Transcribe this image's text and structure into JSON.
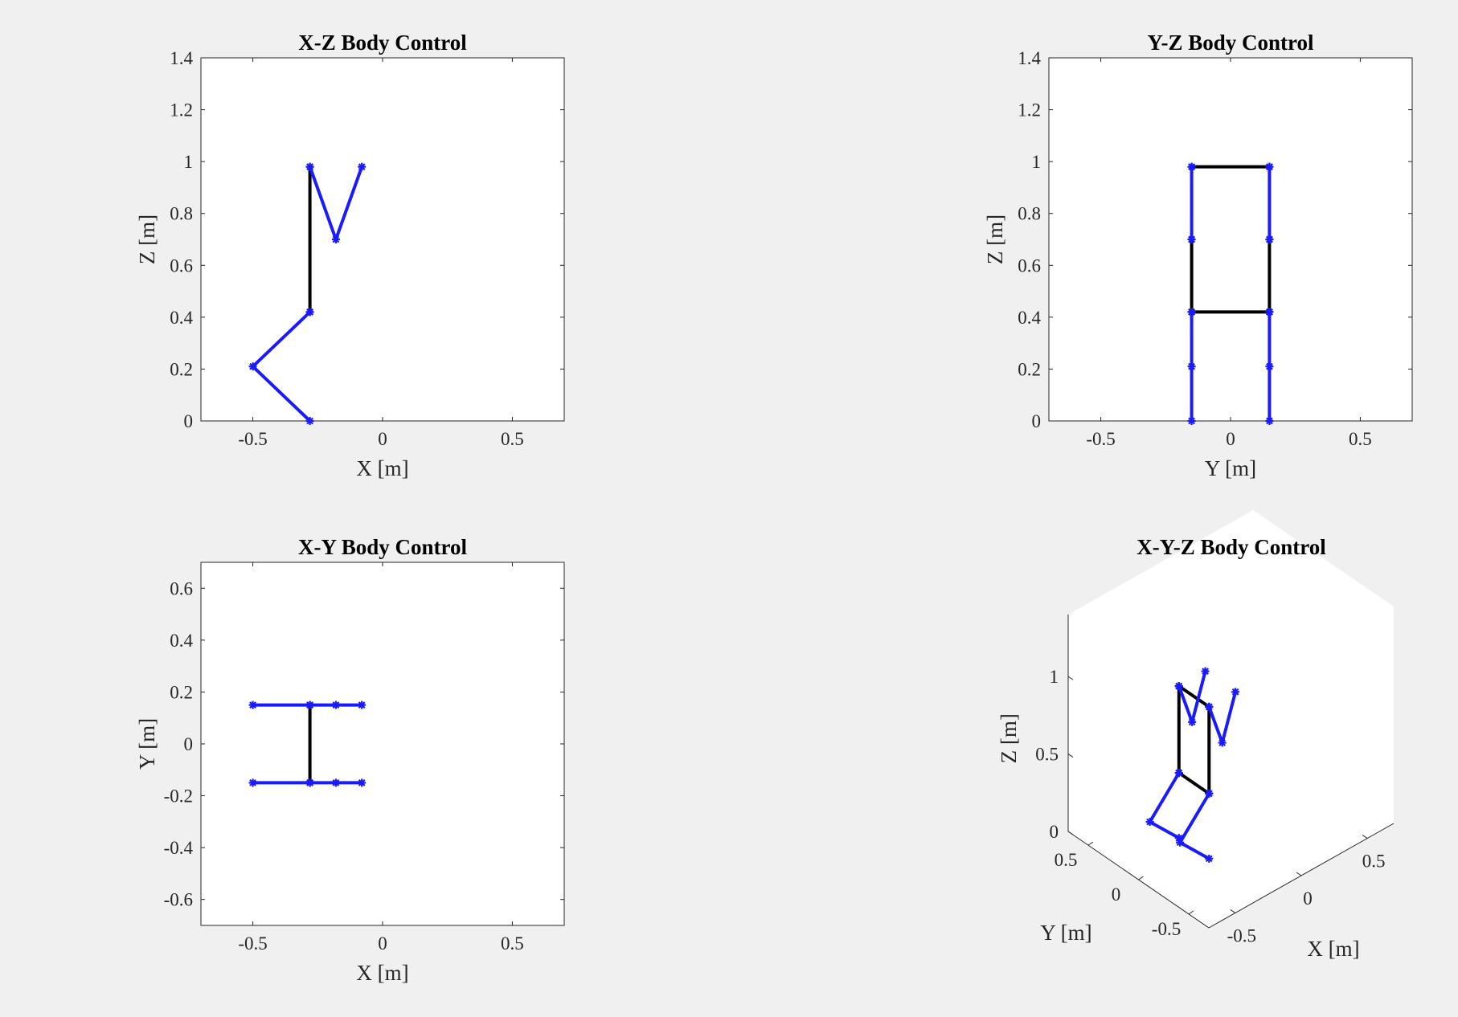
{
  "chart_data": [
    {
      "type": "line",
      "title": "X-Z Body Control",
      "xlabel": "X [m]",
      "ylabel": "Z [m]",
      "xlim": [
        -0.7,
        0.7
      ],
      "ylim": [
        0,
        1.4
      ],
      "xticks": [
        -0.5,
        0,
        0.5
      ],
      "yticks": [
        0,
        0.2,
        0.4,
        0.6,
        0.8,
        1,
        1.2,
        1.4
      ],
      "xtick_labels": [
        "-0.5",
        "0",
        "0.5"
      ],
      "ytick_labels": [
        "0",
        "0.2",
        "0.4",
        "0.6",
        "0.8",
        "1",
        "1.2",
        "1.4"
      ],
      "grid": false,
      "segments": [
        {
          "color": "#000000",
          "points": [
            [
              -0.28,
              0.42
            ],
            [
              -0.28,
              0.98
            ]
          ]
        },
        {
          "color": "#1a1aff",
          "points": [
            [
              -0.28,
              0.98
            ],
            [
              -0.18,
              0.7
            ],
            [
              -0.08,
              0.98
            ]
          ]
        },
        {
          "color": "#1a1aff",
          "points": [
            [
              -0.28,
              0.42
            ],
            [
              -0.5,
              0.21
            ],
            [
              -0.28,
              0.0
            ]
          ]
        }
      ]
    },
    {
      "type": "line",
      "title": "Y-Z Body Control",
      "xlabel": "Y [m]",
      "ylabel": "Z [m]",
      "xlim": [
        -0.7,
        0.7
      ],
      "ylim": [
        0,
        1.4
      ],
      "xticks": [
        -0.5,
        0,
        0.5
      ],
      "yticks": [
        0,
        0.2,
        0.4,
        0.6,
        0.8,
        1,
        1.2,
        1.4
      ],
      "xtick_labels": [
        "-0.5",
        "0",
        "0.5"
      ],
      "ytick_labels": [
        "0",
        "0.2",
        "0.4",
        "0.6",
        "0.8",
        "1",
        "1.2",
        "1.4"
      ],
      "grid": false,
      "segments": [
        {
          "color": "#1a1aff",
          "points": [
            [
              -0.15,
              0.0
            ],
            [
              -0.15,
              0.21
            ],
            [
              -0.15,
              0.42
            ]
          ]
        },
        {
          "color": "#1a1aff",
          "points": [
            [
              0.15,
              0.0
            ],
            [
              0.15,
              0.21
            ],
            [
              0.15,
              0.42
            ]
          ]
        },
        {
          "color": "#1a1aff",
          "points": [
            [
              -0.15,
              0.7
            ],
            [
              -0.15,
              0.98
            ]
          ]
        },
        {
          "color": "#1a1aff",
          "points": [
            [
              0.15,
              0.7
            ],
            [
              0.15,
              0.98
            ]
          ]
        },
        {
          "color": "#000000",
          "points": [
            [
              -0.15,
              0.42
            ],
            [
              -0.15,
              0.7
            ]
          ]
        },
        {
          "color": "#000000",
          "points": [
            [
              0.15,
              0.42
            ],
            [
              0.15,
              0.7
            ]
          ]
        },
        {
          "color": "#000000",
          "points": [
            [
              -0.15,
              0.42
            ],
            [
              0.15,
              0.42
            ]
          ]
        },
        {
          "color": "#000000",
          "points": [
            [
              -0.15,
              0.98
            ],
            [
              0.15,
              0.98
            ]
          ]
        }
      ]
    },
    {
      "type": "line",
      "title": "X-Y Body Control",
      "xlabel": "X [m]",
      "ylabel": "Y [m]",
      "xlim": [
        -0.7,
        0.7
      ],
      "ylim": [
        -0.7,
        0.7
      ],
      "xticks": [
        -0.5,
        0,
        0.5
      ],
      "yticks": [
        -0.6,
        -0.4,
        -0.2,
        0,
        0.2,
        0.4,
        0.6
      ],
      "xtick_labels": [
        "-0.5",
        "0",
        "0.5"
      ],
      "ytick_labels": [
        "-0.6",
        "-0.4",
        "-0.2",
        "0",
        "0.2",
        "0.4",
        "0.6"
      ],
      "grid": false,
      "segments": [
        {
          "color": "#1a1aff",
          "points": [
            [
              -0.5,
              0.15
            ],
            [
              -0.28,
              0.15
            ],
            [
              -0.18,
              0.15
            ],
            [
              -0.08,
              0.15
            ]
          ]
        },
        {
          "color": "#1a1aff",
          "points": [
            [
              -0.5,
              -0.15
            ],
            [
              -0.28,
              -0.15
            ],
            [
              -0.18,
              -0.15
            ],
            [
              -0.08,
              -0.15
            ]
          ]
        },
        {
          "color": "#000000",
          "points": [
            [
              -0.28,
              -0.15
            ],
            [
              -0.28,
              0.15
            ]
          ]
        }
      ]
    },
    {
      "type": "line",
      "title": "X-Y-Z Body Control",
      "xlabel": "X [m]",
      "ylabel": "Y [m]",
      "zlabel": "Z [m]",
      "xlim": [
        -0.7,
        0.7
      ],
      "ylim": [
        -0.7,
        0.7
      ],
      "zlim": [
        0,
        1.4
      ],
      "view": "3d",
      "xtick_labels": [
        "-0.5",
        "0",
        "0.5"
      ],
      "ytick_labels": [
        "-0.5",
        "0",
        "0.5"
      ],
      "ztick_labels": [
        "0",
        "0.5",
        "1"
      ],
      "grid": false,
      "segments": [
        {
          "color": "#000000",
          "points": [
            [
              -0.28,
              -0.15,
              0.42
            ],
            [
              -0.28,
              -0.15,
              0.98
            ]
          ]
        },
        {
          "color": "#000000",
          "points": [
            [
              -0.28,
              0.15,
              0.42
            ],
            [
              -0.28,
              0.15,
              0.98
            ]
          ]
        },
        {
          "color": "#000000",
          "points": [
            [
              -0.28,
              -0.15,
              0.42
            ],
            [
              -0.28,
              0.15,
              0.42
            ]
          ]
        },
        {
          "color": "#000000",
          "points": [
            [
              -0.28,
              -0.15,
              0.98
            ],
            [
              -0.28,
              0.15,
              0.98
            ]
          ]
        },
        {
          "color": "#1a1aff",
          "points": [
            [
              -0.28,
              0.15,
              0.98
            ],
            [
              -0.18,
              0.15,
              0.7
            ],
            [
              -0.08,
              0.15,
              0.98
            ]
          ]
        },
        {
          "color": "#1a1aff",
          "points": [
            [
              -0.28,
              -0.15,
              0.98
            ],
            [
              -0.18,
              -0.15,
              0.7
            ],
            [
              -0.08,
              -0.15,
              0.98
            ]
          ]
        },
        {
          "color": "#1a1aff",
          "points": [
            [
              -0.28,
              0.15,
              0.42
            ],
            [
              -0.5,
              0.15,
              0.21
            ],
            [
              -0.28,
              0.15,
              0.0
            ]
          ]
        },
        {
          "color": "#1a1aff",
          "points": [
            [
              -0.28,
              -0.15,
              0.42
            ],
            [
              -0.5,
              -0.15,
              0.21
            ],
            [
              -0.28,
              -0.15,
              0.0
            ]
          ]
        }
      ]
    }
  ]
}
